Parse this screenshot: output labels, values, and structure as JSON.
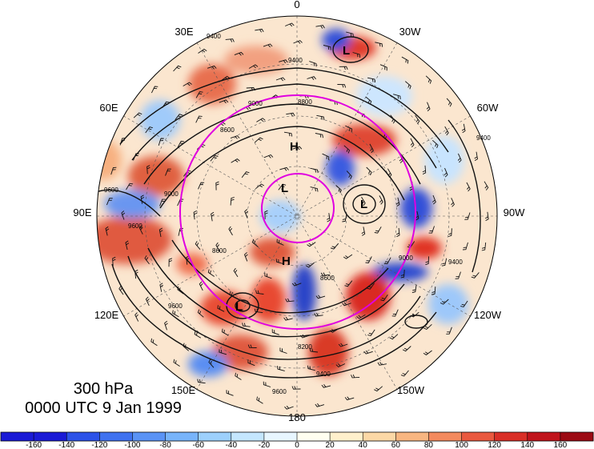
{
  "title": {
    "level": "300 hPa",
    "time": "0000 UTC 9 Jan 1999"
  },
  "longitude_labels": [
    "0",
    "30W",
    "60W",
    "90W",
    "120W",
    "150W",
    "180",
    "150E",
    "120E",
    "90E",
    "60E",
    "30E"
  ],
  "pressure_systems": [
    {
      "name": "L-north",
      "text": "L"
    },
    {
      "name": "H-upper",
      "text": "H"
    },
    {
      "name": "L-center",
      "text": "L"
    },
    {
      "name": "L-east",
      "text": "L"
    },
    {
      "name": "H-lower",
      "text": "H"
    },
    {
      "name": "L-southwest",
      "text": "L"
    }
  ],
  "contour_labels": [
    "9400",
    "9400",
    "9000",
    "8600",
    "9000",
    "9600",
    "9600",
    "8600",
    "8200",
    "8600",
    "9000",
    "9400",
    "9600",
    "9400",
    "8800",
    "9600",
    "9400"
  ],
  "colorbar": {
    "ticks": [
      "-160",
      "-140",
      "-120",
      "-100",
      "-80",
      "-60",
      "-40",
      "-20",
      "0",
      "20",
      "40",
      "60",
      "80",
      "100",
      "120",
      "140",
      "160"
    ],
    "colors": [
      "#1a1ad6",
      "#2c52e8",
      "#3f72f0",
      "#5a93f5",
      "#78b4fa",
      "#9dd0fc",
      "#c4e6fe",
      "#e8f6ff",
      "#fffef0",
      "#fff0cc",
      "#fcd8a6",
      "#f8b681",
      "#f38a5e",
      "#e9593f",
      "#d92f27",
      "#c0141c",
      "#9c0b14"
    ]
  },
  "colors": {
    "ring": "#e000e0",
    "contour": "#000000",
    "background_field": "#fde9d2"
  }
}
